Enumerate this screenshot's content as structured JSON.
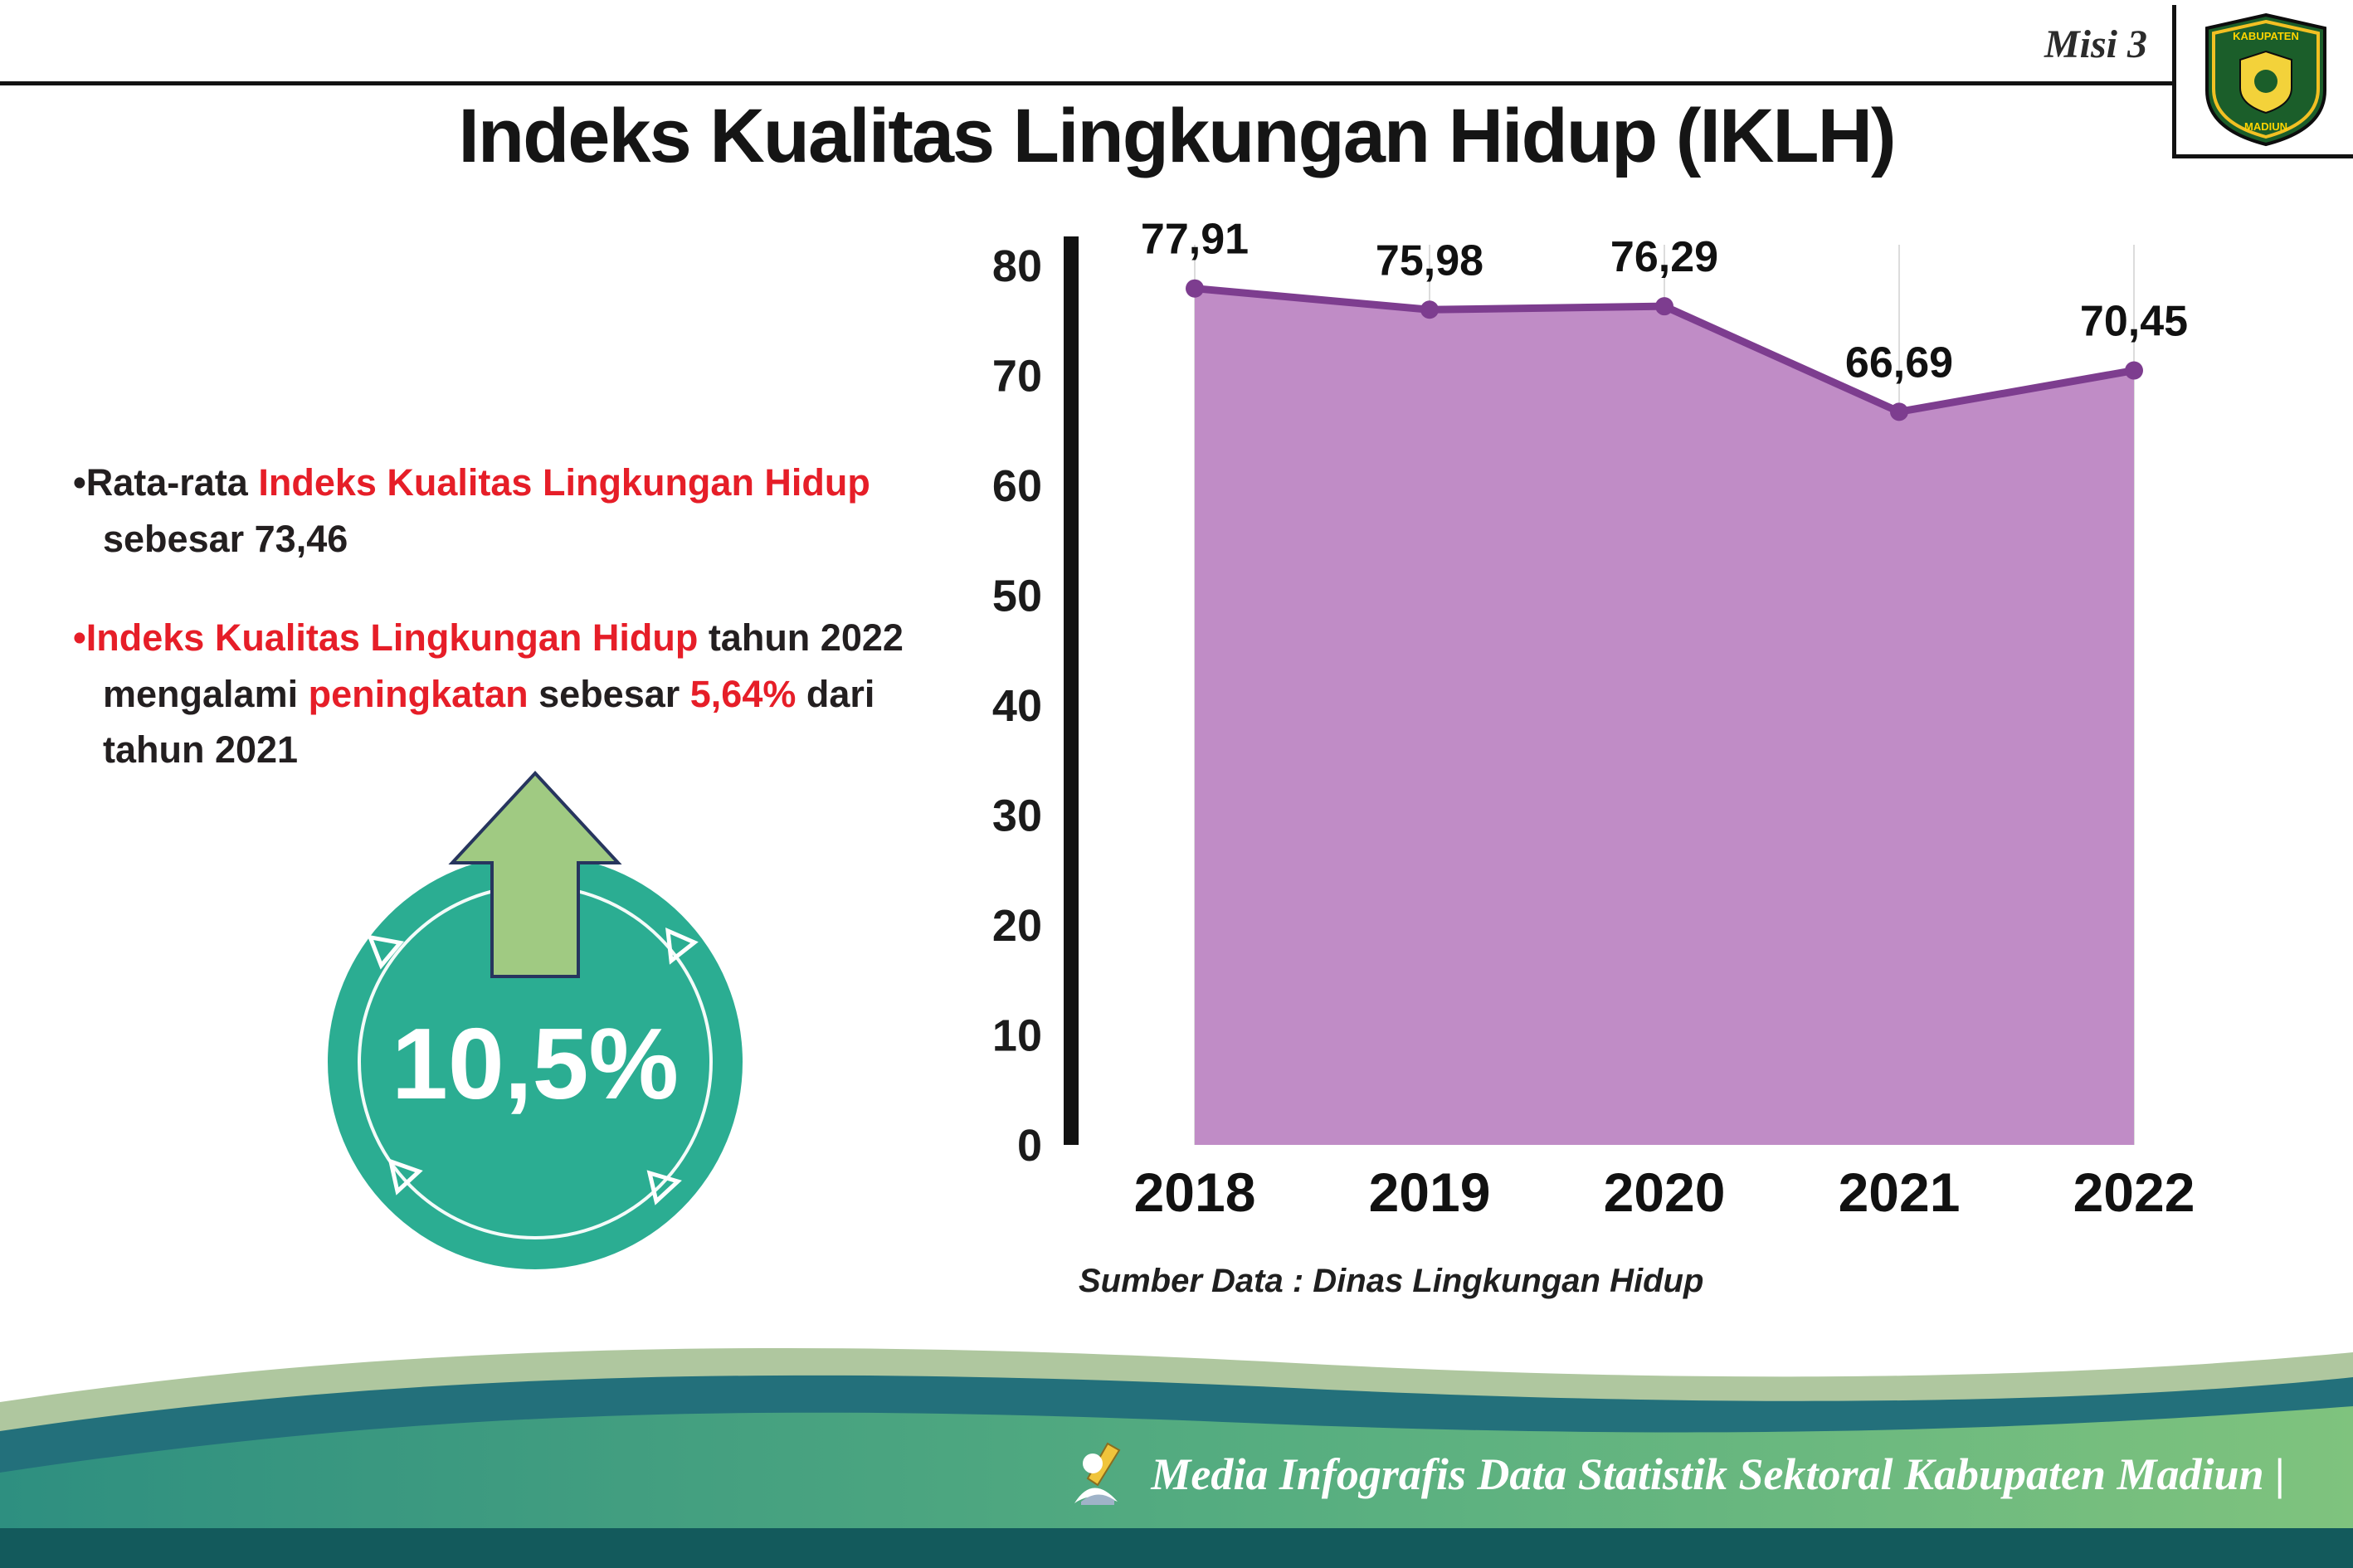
{
  "header": {
    "misi": "Misi 3",
    "title": "Indeks Kualitas Lingkungan Hidup (IKLH)"
  },
  "logo": {
    "kabupaten": "KABUPATEN",
    "madiun": "MADIUN"
  },
  "bullets": [
    {
      "segments": [
        {
          "text": "•Rata-rata ",
          "color": "dark"
        },
        {
          "text": "Indeks Kualitas Lingkungan Hidup",
          "color": "red"
        },
        {
          "text": " sebesar 73,46",
          "color": "dark"
        }
      ]
    },
    {
      "segments": [
        {
          "text": "•Indeks Kualitas Lingkungan Hidup",
          "color": "red"
        },
        {
          "text": " tahun 2022 mengalami ",
          "color": "dark"
        },
        {
          "text": "peningkatan",
          "color": "red"
        },
        {
          "text": " sebesar ",
          "color": "dark"
        },
        {
          "text": "5,64%",
          "color": "red"
        },
        {
          "text": " dari tahun 2021",
          "color": "dark"
        }
      ]
    }
  ],
  "badge": {
    "value": "10,5%",
    "circle_color": "#2bad92",
    "arrow_color": "#a0ca82"
  },
  "chart_data": {
    "type": "area",
    "title": "",
    "categories": [
      "2018",
      "2019",
      "2020",
      "2021",
      "2022"
    ],
    "values": [
      77.91,
      75.98,
      76.29,
      66.69,
      70.45
    ],
    "labels": [
      "77,91",
      "75,98",
      "76,29",
      "66,69",
      "70,45"
    ],
    "ylim": [
      0,
      80
    ],
    "yticks": [
      0,
      10,
      20,
      30,
      40,
      50,
      60,
      70,
      80
    ],
    "xlabel": "",
    "ylabel": "",
    "grid": "vertical-light",
    "legend": "none",
    "fill_color": "#c08cc6",
    "line_color": "#7d3d8f",
    "source": "Sumber Data : Dinas Lingkungan Hidup"
  },
  "footer": {
    "text": "Media Infografis Data Statistik Sektoral Kabupaten Madiun |",
    "bar_color": "#135a5c"
  },
  "colors": {
    "accent_red": "#e61e28",
    "badge_teal": "#2bad92",
    "area_plum": "#c08cc6",
    "line_purple": "#7d3d8f",
    "footer_dark_teal": "#135a5c"
  }
}
